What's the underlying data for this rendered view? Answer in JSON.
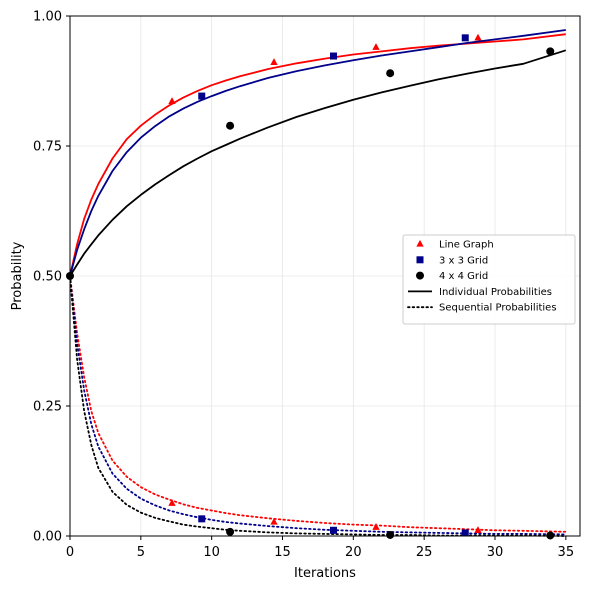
{
  "chart_data": {
    "type": "line",
    "title": "",
    "xlabel": "Iterations",
    "ylabel": "Probability",
    "xlim": [
      0,
      36
    ],
    "ylim": [
      0,
      1
    ],
    "xticks": [
      0,
      5,
      10,
      15,
      20,
      25,
      30,
      35
    ],
    "xtick_labels": [
      "0",
      "5",
      "10",
      "15",
      "20",
      "25",
      "30",
      "35"
    ],
    "yticks": [
      0,
      0.25,
      0.5,
      0.75,
      1
    ],
    "ytick_labels": [
      "0.00",
      "0.25",
      "0.50",
      "0.75",
      "1.00"
    ],
    "grid": true,
    "legend": {
      "position": "center-right",
      "entries": [
        {
          "label": "Line Graph",
          "marker": "triangle",
          "color": "#ff0000"
        },
        {
          "label": "3 x 3 Grid",
          "marker": "square",
          "color": "#00008b"
        },
        {
          "label": "4 x 4 Grid",
          "marker": "circle",
          "color": "#000000"
        },
        {
          "label": "Individual Probabilities",
          "line": "solid",
          "color": "#000000"
        },
        {
          "label": "Sequential Probabilities",
          "line": "dotted",
          "color": "#000000"
        }
      ]
    },
    "x": [
      0,
      0.5,
      1,
      1.5,
      2,
      3,
      4,
      5,
      6,
      7,
      8,
      9,
      10,
      11,
      12,
      14,
      16,
      18,
      20,
      22,
      24,
      26,
      28,
      30,
      32,
      35
    ],
    "series": [
      {
        "name": "Line Graph",
        "group": "Individual Probabilities",
        "color": "#ff0000",
        "style": "solid",
        "marker": "triangle",
        "values": [
          0.5,
          0.561,
          0.61,
          0.647,
          0.677,
          0.726,
          0.763,
          0.789,
          0.81,
          0.828,
          0.843,
          0.856,
          0.867,
          0.876,
          0.884,
          0.898,
          0.909,
          0.918,
          0.926,
          0.932,
          0.938,
          0.943,
          0.947,
          0.951,
          0.955,
          0.965
        ],
        "marker_x": [
          7.2,
          14.4,
          21.6,
          28.8
        ],
        "marker_y": [
          0.836,
          0.911,
          0.94,
          0.958
        ]
      },
      {
        "name": "3 x 3 Grid",
        "group": "Individual Probabilities",
        "color": "#00008b",
        "style": "solid",
        "marker": "square",
        "values": [
          0.5,
          0.55,
          0.59,
          0.625,
          0.654,
          0.702,
          0.738,
          0.766,
          0.788,
          0.807,
          0.822,
          0.835,
          0.846,
          0.856,
          0.865,
          0.881,
          0.894,
          0.905,
          0.915,
          0.924,
          0.932,
          0.94,
          0.948,
          0.955,
          0.962,
          0.973
        ],
        "marker_x": [
          9.3,
          18.6,
          27.9
        ],
        "marker_y": [
          0.846,
          0.923,
          0.958
        ]
      },
      {
        "name": "4 x 4 Grid",
        "group": "Individual Probabilities",
        "color": "#000000",
        "style": "solid",
        "marker": "circle",
        "values": [
          0.5,
          0.522,
          0.543,
          0.561,
          0.578,
          0.608,
          0.634,
          0.656,
          0.676,
          0.694,
          0.711,
          0.726,
          0.74,
          0.752,
          0.764,
          0.786,
          0.806,
          0.823,
          0.839,
          0.853,
          0.866,
          0.878,
          0.889,
          0.899,
          0.908,
          0.934
        ],
        "marker_x": [
          11.3,
          22.6,
          33.9
        ],
        "marker_y": [
          0.789,
          0.89,
          0.932
        ]
      },
      {
        "name": "Line Graph",
        "group": "Sequential Probabilities",
        "color": "#ff0000",
        "style": "dotted",
        "marker": "triangle",
        "values": [
          0.5,
          0.39,
          0.305,
          0.24,
          0.198,
          0.145,
          0.114,
          0.094,
          0.08,
          0.07,
          0.061,
          0.054,
          0.049,
          0.044,
          0.04,
          0.034,
          0.029,
          0.025,
          0.022,
          0.02,
          0.017,
          0.015,
          0.013,
          0.011,
          0.01,
          0.008
        ],
        "marker_x": [
          7.2,
          14.4,
          21.6,
          28.8
        ],
        "marker_y": [
          0.063,
          0.027,
          0.017,
          0.011
        ]
      },
      {
        "name": "3 x 3 Grid",
        "group": "Sequential Probabilities",
        "color": "#00008b",
        "style": "dotted",
        "marker": "square",
        "values": [
          0.5,
          0.37,
          0.28,
          0.215,
          0.172,
          0.12,
          0.091,
          0.072,
          0.059,
          0.049,
          0.042,
          0.036,
          0.031,
          0.027,
          0.024,
          0.019,
          0.015,
          0.012,
          0.01,
          0.008,
          0.007,
          0.006,
          0.005,
          0.004,
          0.004,
          0.003
        ],
        "marker_x": [
          9.3,
          18.6,
          27.9
        ],
        "marker_y": [
          0.033,
          0.011,
          0.006
        ]
      },
      {
        "name": "4 x 4 Grid",
        "group": "Sequential Probabilities",
        "color": "#000000",
        "style": "dotted",
        "marker": "circle",
        "values": [
          0.5,
          0.34,
          0.24,
          0.175,
          0.131,
          0.085,
          0.06,
          0.045,
          0.035,
          0.028,
          0.022,
          0.018,
          0.015,
          0.012,
          0.01,
          0.007,
          0.005,
          0.004,
          0.003,
          0.002,
          0.002,
          0.001,
          0.001,
          0.001,
          0.001,
          0.0
        ],
        "marker_x": [
          11.3,
          22.6,
          33.9
        ],
        "marker_y": [
          0.008,
          0.002,
          0.001
        ]
      }
    ],
    "start_point": {
      "x": 0,
      "y": 0.5,
      "marker": "circle",
      "color": "#000000"
    }
  }
}
